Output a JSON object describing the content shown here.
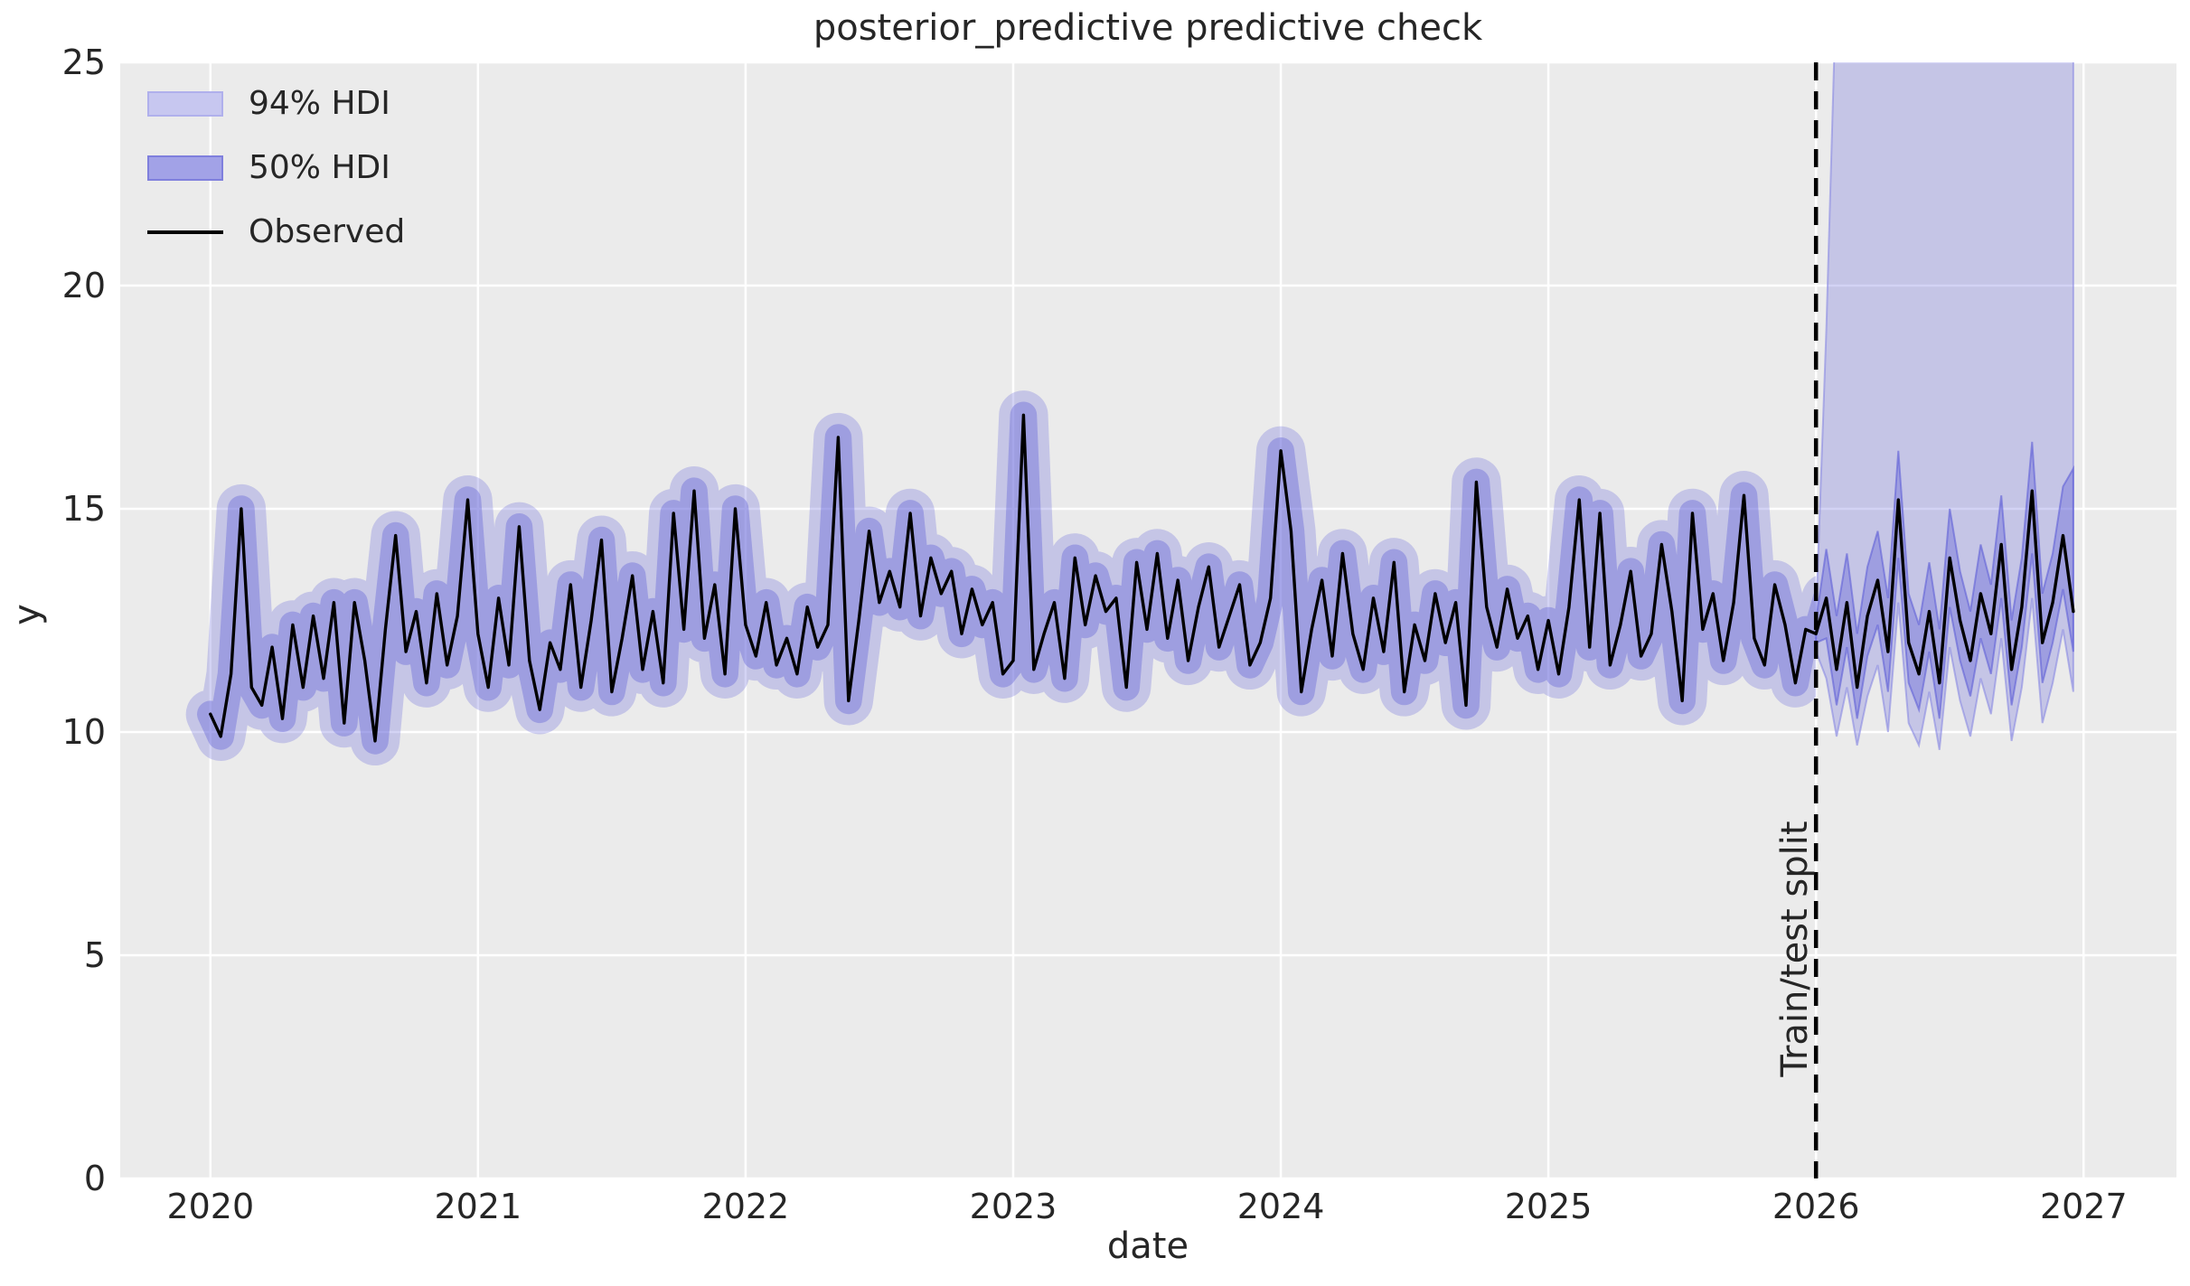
{
  "chart_data": {
    "type": "line",
    "title": "posterior_predictive predictive check",
    "xlabel": "date",
    "ylabel": "y",
    "xlim": [
      2019.663,
      2027.347
    ],
    "ylim": [
      0,
      25
    ],
    "xticks": [
      2020,
      2021,
      2022,
      2023,
      2024,
      2025,
      2026,
      2027
    ],
    "yticks": [
      0,
      5,
      10,
      15,
      20,
      25
    ],
    "grid": true,
    "legend_position": "upper left",
    "split": {
      "x": 2026.0,
      "label": "Train/test split"
    },
    "legend": [
      {
        "label": "94% HDI",
        "type": "band",
        "fill": "#c7c7f0",
        "edge": "#b0b0ec"
      },
      {
        "label": "50% HDI",
        "type": "band",
        "fill": "#a2a2e7",
        "edge": "#7f7fdd"
      },
      {
        "label": "Observed",
        "type": "line",
        "color": "#000000"
      }
    ],
    "colors": {
      "band94_fill": "rgba(117,117,222,0.32)",
      "band94_edge": "rgba(130,130,225,0.55)",
      "band50_fill": "rgba(105,105,218,0.42)",
      "band50_edge": "rgba(95,95,215,0.60)",
      "observed": "#000000",
      "background": "#ebebeb",
      "gridline": "#ffffff",
      "text": "#262626",
      "split_line": "#000000"
    },
    "observed": {
      "x0": 2020.0,
      "dx": 0.0384615,
      "y": [
        10.4,
        9.9,
        11.3,
        15.0,
        11.0,
        10.6,
        11.9,
        10.3,
        12.4,
        11.0,
        12.6,
        11.2,
        12.9,
        10.2,
        12.9,
        11.6,
        9.8,
        12.3,
        14.4,
        11.8,
        12.7,
        11.1,
        13.1,
        11.5,
        12.6,
        15.2,
        12.2,
        11.0,
        13.0,
        11.5,
        14.6,
        11.6,
        10.5,
        12.0,
        11.4,
        13.3,
        11.0,
        12.5,
        14.3,
        10.9,
        12.1,
        13.5,
        11.4,
        12.7,
        11.1,
        14.9,
        12.3,
        15.4,
        12.1,
        13.3,
        11.3,
        15.0,
        12.4,
        11.7,
        12.9,
        11.5,
        12.1,
        11.3,
        12.8,
        11.9,
        12.4,
        16.6,
        10.7,
        12.5,
        14.5,
        12.9,
        13.6,
        12.8,
        14.9,
        12.6,
        13.9,
        13.1,
        13.6,
        12.2,
        13.2,
        12.4,
        12.9,
        11.3,
        11.6,
        17.1,
        11.4,
        12.2,
        12.9,
        11.2,
        13.9,
        12.4,
        13.5,
        12.7,
        13.0,
        11.0,
        13.8,
        12.3,
        14.0,
        12.1,
        13.4,
        11.6,
        12.8,
        13.7,
        11.9,
        12.6,
        13.3,
        11.5,
        12.0,
        13.0,
        16.3,
        14.5,
        10.9,
        12.3,
        13.4,
        11.7,
        14.0,
        12.2,
        11.4,
        13.0,
        11.8,
        13.8,
        10.9,
        12.4,
        11.6,
        13.1,
        12.0,
        12.9,
        10.6,
        15.6,
        12.8,
        11.9,
        13.2,
        12.1,
        12.6,
        11.4,
        12.5,
        11.3,
        12.8,
        15.2,
        11.9,
        14.9,
        11.5,
        12.4,
        13.6,
        11.7,
        12.2,
        14.2,
        12.7,
        10.7,
        14.9,
        12.3,
        13.1,
        11.6,
        12.9,
        15.3,
        12.1,
        11.5,
        13.3,
        12.4,
        11.1,
        12.3,
        12.2,
        13.0,
        11.4,
        12.9,
        11.0,
        12.6,
        13.4,
        11.8,
        15.2,
        12.0,
        11.3,
        12.7,
        11.1,
        13.9,
        12.5,
        11.6,
        13.1,
        12.2,
        14.2,
        11.4,
        12.8,
        15.4,
        12.0,
        12.9,
        14.4,
        12.7
      ]
    },
    "train_hdi_halfwidth": {
      "hdi94": 0.55,
      "hdi50": 0.3
    },
    "forecast": {
      "x0": 2026.0,
      "dx": 0.0384615,
      "hdi94_hi": [
        12.6,
        19.0,
        27.0,
        28,
        28,
        28,
        28,
        28,
        28,
        28,
        28,
        28,
        28,
        28,
        28,
        28,
        28,
        28,
        28,
        28,
        28,
        28,
        28,
        28,
        28,
        28
      ],
      "hdi94_lo": [
        11.8,
        11.2,
        9.9,
        11.0,
        9.7,
        10.8,
        11.5,
        10.0,
        12.9,
        10.2,
        9.7,
        10.9,
        9.6,
        11.9,
        10.7,
        9.9,
        11.2,
        10.4,
        12.1,
        9.8,
        11.0,
        13.0,
        10.2,
        11.1,
        12.3,
        10.9
      ],
      "hdi50_hi": [
        12.5,
        14.1,
        12.6,
        14.0,
        12.2,
        13.7,
        14.5,
        13.0,
        16.3,
        13.1,
        12.4,
        13.8,
        12.3,
        15.0,
        13.6,
        12.7,
        14.2,
        13.3,
        15.3,
        12.5,
        13.9,
        16.5,
        13.1,
        14.0,
        15.5,
        15.9
      ],
      "hdi50_lo": [
        12.0,
        12.1,
        10.6,
        11.9,
        10.3,
        11.7,
        12.4,
        10.9,
        13.9,
        11.1,
        10.5,
        11.8,
        10.3,
        12.8,
        11.6,
        10.8,
        12.1,
        11.3,
        13.0,
        10.6,
        11.9,
        14.0,
        11.1,
        12.0,
        13.2,
        11.8
      ]
    }
  }
}
